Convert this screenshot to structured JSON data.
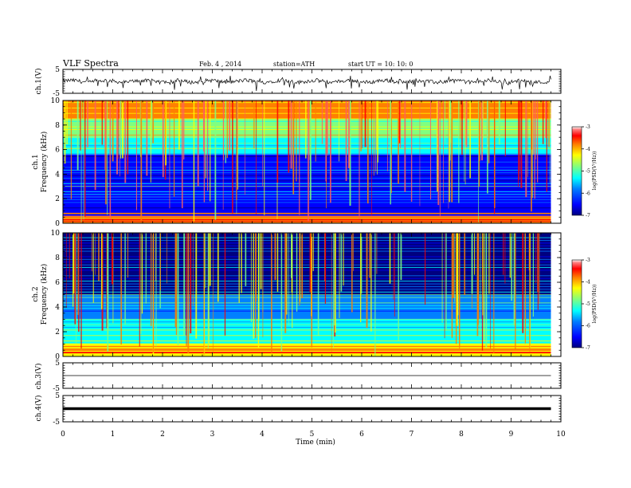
{
  "header": {
    "title": "VLF Spectra",
    "date": "Feb. 4  , 2014",
    "station": "station=ATH",
    "start": "start  UT  =    10: 10: 0"
  },
  "colors": {
    "jet": [
      "#00007f",
      "#0000ff",
      "#0080ff",
      "#00ffff",
      "#80ff80",
      "#ffff00",
      "#ff8000",
      "#ff0000",
      "#ff6060",
      "#ffffff"
    ]
  },
  "chart_data": [
    {
      "type": "line",
      "panel": "ch1-waveform",
      "ylabel": "ch.1(V)",
      "ylim": [
        -5,
        5
      ],
      "yticks": [
        "5",
        "-5"
      ],
      "baseline": 0,
      "series": [
        {
          "values_summary": "noisy signal around 0 V, spikes to about -3 V"
        }
      ]
    },
    {
      "type": "heatmap",
      "panel": "ch1-spectrogram",
      "ylabel_channel": "ch.1",
      "ylabel": "Frequency  (kHz)",
      "ylim": [
        0,
        10
      ],
      "yticks": [
        "0",
        "2",
        "4",
        "6",
        "8",
        "10"
      ],
      "colorbar": {
        "label": "log(PSD(V²/Hz))",
        "range": [
          -7,
          -3
        ],
        "ticks": [
          "-3",
          "-4",
          "-5",
          "-6",
          "-7"
        ]
      },
      "bands": [
        {
          "from": 0.0,
          "to": 0.6,
          "level": -4.0
        },
        {
          "from": 0.6,
          "to": 2.2,
          "level": -6.3
        },
        {
          "from": 2.2,
          "to": 5.6,
          "level": -6.2
        },
        {
          "from": 5.6,
          "to": 7.0,
          "level": -5.6
        },
        {
          "from": 7.0,
          "to": 8.5,
          "level": -5.1
        },
        {
          "from": 8.5,
          "to": 10.0,
          "level": -4.3
        }
      ]
    },
    {
      "type": "heatmap",
      "panel": "ch2-spectrogram",
      "ylabel_channel": "ch.2",
      "ylabel": "Frequency  (kHz)",
      "ylim": [
        0,
        10
      ],
      "yticks": [
        "0",
        "2",
        "4",
        "6",
        "8",
        "10"
      ],
      "colorbar": {
        "label": "log(PSD(V²/Hz))",
        "range": [
          -7,
          -3
        ],
        "ticks": [
          "-3",
          "-4",
          "-5",
          "-6",
          "-7"
        ]
      },
      "bands": [
        {
          "from": 0.0,
          "to": 1.0,
          "level": -4.6
        },
        {
          "from": 1.0,
          "to": 3.0,
          "level": -5.6
        },
        {
          "from": 3.0,
          "to": 5.0,
          "level": -6.0
        },
        {
          "from": 5.0,
          "to": 10.0,
          "level": -6.6
        }
      ]
    },
    {
      "type": "line",
      "panel": "ch3-waveform",
      "ylabel": "ch.3(V)",
      "ylim": [
        -5,
        5
      ],
      "yticks": [
        "5",
        "-5"
      ],
      "baseline": 0
    },
    {
      "type": "line",
      "panel": "ch4-waveform",
      "ylabel": "ch.4(V)",
      "ylim": [
        -5,
        5
      ],
      "yticks": [
        "5",
        "-5"
      ],
      "baseline": 0
    }
  ],
  "x_axis": {
    "label": "Time  (min)",
    "range": [
      0,
      10
    ],
    "ticks": [
      "0",
      "1",
      "2",
      "3",
      "4",
      "5",
      "6",
      "7",
      "8",
      "9",
      "10"
    ],
    "data_end": 9.8
  }
}
